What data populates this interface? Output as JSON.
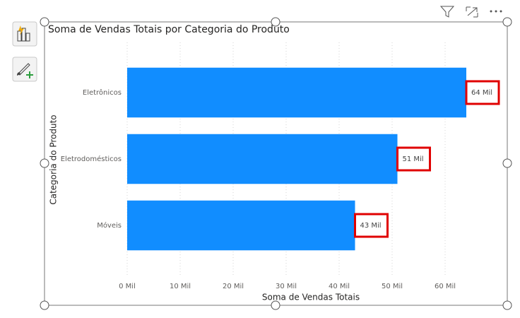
{
  "chart_data": {
    "type": "bar",
    "orientation": "horizontal",
    "title": "Soma de Vendas Totais por Categoria do Produto",
    "x_label": "Soma de Vendas Totais",
    "y_label": "Categoria do Produto",
    "categories": [
      "Eletrônicos",
      "Eletrodomésticos",
      "Móveis"
    ],
    "values": [
      64,
      51,
      43
    ],
    "value_labels": [
      "64 Mil",
      "51 Mil",
      "43 Mil"
    ],
    "color": "#118dff",
    "xlim": [
      0,
      66
    ],
    "xticks": [
      {
        "value": 0,
        "label": "0 Mil"
      },
      {
        "value": 10,
        "label": "10 Mil"
      },
      {
        "value": 20,
        "label": "20 Mil"
      },
      {
        "value": 30,
        "label": "30 Mil"
      },
      {
        "value": 40,
        "label": "40 Mil"
      },
      {
        "value": 50,
        "label": "50 Mil"
      },
      {
        "value": 60,
        "label": "60 Mil"
      }
    ],
    "grid": true
  }
}
